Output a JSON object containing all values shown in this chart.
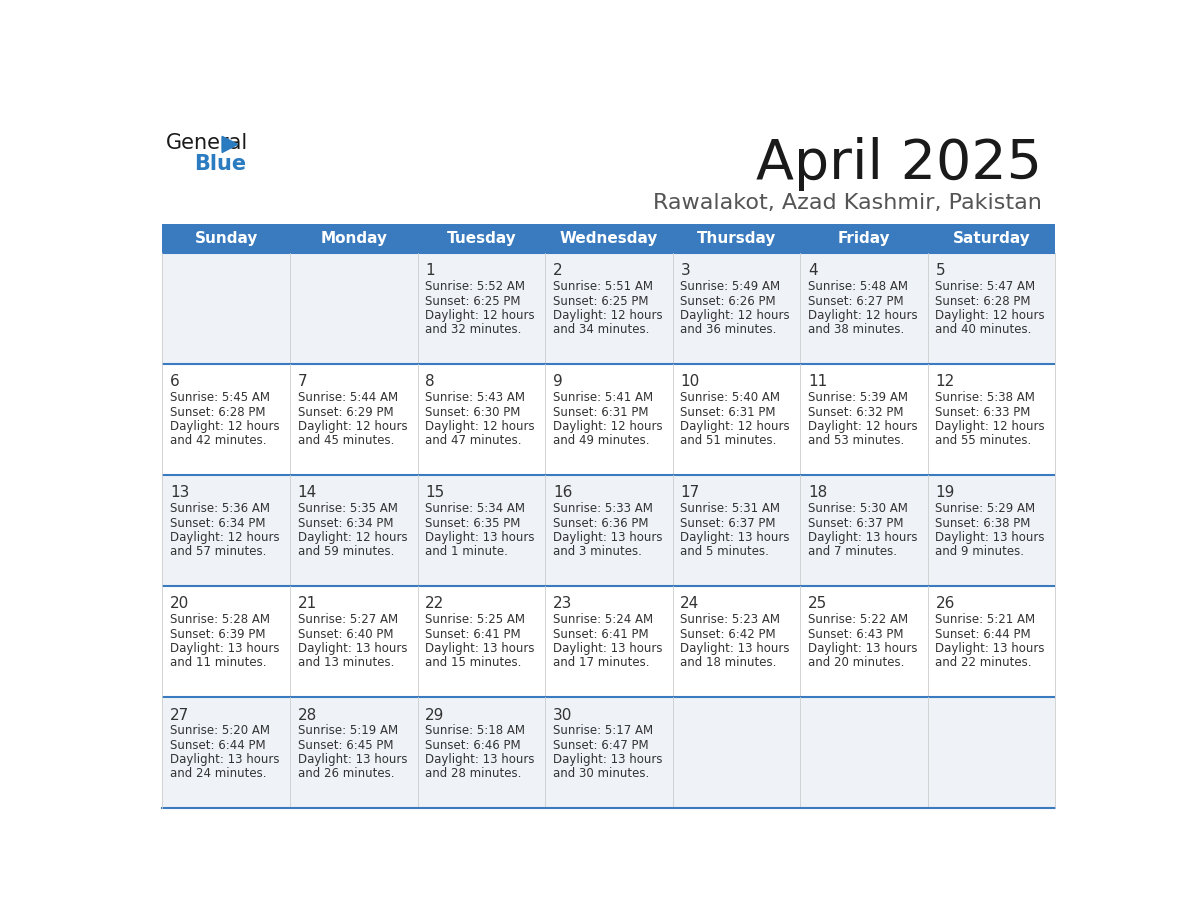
{
  "title": "April 2025",
  "subtitle": "Rawalakot, Azad Kashmir, Pakistan",
  "header_bg_color": "#3a7bbf",
  "header_text_color": "#ffffff",
  "row_bg_even": "#eff3f8",
  "row_bg_odd": "#ffffff",
  "day_headers": [
    "Sunday",
    "Monday",
    "Tuesday",
    "Wednesday",
    "Thursday",
    "Friday",
    "Saturday"
  ],
  "calendar_data": [
    [
      {
        "day": "",
        "sunrise": "",
        "sunset": "",
        "daylight": ""
      },
      {
        "day": "",
        "sunrise": "",
        "sunset": "",
        "daylight": ""
      },
      {
        "day": "1",
        "sunrise": "5:52 AM",
        "sunset": "6:25 PM",
        "daylight": "12 hours",
        "daylight2": "and 32 minutes."
      },
      {
        "day": "2",
        "sunrise": "5:51 AM",
        "sunset": "6:25 PM",
        "daylight": "12 hours",
        "daylight2": "and 34 minutes."
      },
      {
        "day": "3",
        "sunrise": "5:49 AM",
        "sunset": "6:26 PM",
        "daylight": "12 hours",
        "daylight2": "and 36 minutes."
      },
      {
        "day": "4",
        "sunrise": "5:48 AM",
        "sunset": "6:27 PM",
        "daylight": "12 hours",
        "daylight2": "and 38 minutes."
      },
      {
        "day": "5",
        "sunrise": "5:47 AM",
        "sunset": "6:28 PM",
        "daylight": "12 hours",
        "daylight2": "and 40 minutes."
      }
    ],
    [
      {
        "day": "6",
        "sunrise": "5:45 AM",
        "sunset": "6:28 PM",
        "daylight": "12 hours",
        "daylight2": "and 42 minutes."
      },
      {
        "day": "7",
        "sunrise": "5:44 AM",
        "sunset": "6:29 PM",
        "daylight": "12 hours",
        "daylight2": "and 45 minutes."
      },
      {
        "day": "8",
        "sunrise": "5:43 AM",
        "sunset": "6:30 PM",
        "daylight": "12 hours",
        "daylight2": "and 47 minutes."
      },
      {
        "day": "9",
        "sunrise": "5:41 AM",
        "sunset": "6:31 PM",
        "daylight": "12 hours",
        "daylight2": "and 49 minutes."
      },
      {
        "day": "10",
        "sunrise": "5:40 AM",
        "sunset": "6:31 PM",
        "daylight": "12 hours",
        "daylight2": "and 51 minutes."
      },
      {
        "day": "11",
        "sunrise": "5:39 AM",
        "sunset": "6:32 PM",
        "daylight": "12 hours",
        "daylight2": "and 53 minutes."
      },
      {
        "day": "12",
        "sunrise": "5:38 AM",
        "sunset": "6:33 PM",
        "daylight": "12 hours",
        "daylight2": "and 55 minutes."
      }
    ],
    [
      {
        "day": "13",
        "sunrise": "5:36 AM",
        "sunset": "6:34 PM",
        "daylight": "12 hours",
        "daylight2": "and 57 minutes."
      },
      {
        "day": "14",
        "sunrise": "5:35 AM",
        "sunset": "6:34 PM",
        "daylight": "12 hours",
        "daylight2": "and 59 minutes."
      },
      {
        "day": "15",
        "sunrise": "5:34 AM",
        "sunset": "6:35 PM",
        "daylight": "13 hours",
        "daylight2": "and 1 minute."
      },
      {
        "day": "16",
        "sunrise": "5:33 AM",
        "sunset": "6:36 PM",
        "daylight": "13 hours",
        "daylight2": "and 3 minutes."
      },
      {
        "day": "17",
        "sunrise": "5:31 AM",
        "sunset": "6:37 PM",
        "daylight": "13 hours",
        "daylight2": "and 5 minutes."
      },
      {
        "day": "18",
        "sunrise": "5:30 AM",
        "sunset": "6:37 PM",
        "daylight": "13 hours",
        "daylight2": "and 7 minutes."
      },
      {
        "day": "19",
        "sunrise": "5:29 AM",
        "sunset": "6:38 PM",
        "daylight": "13 hours",
        "daylight2": "and 9 minutes."
      }
    ],
    [
      {
        "day": "20",
        "sunrise": "5:28 AM",
        "sunset": "6:39 PM",
        "daylight": "13 hours",
        "daylight2": "and 11 minutes."
      },
      {
        "day": "21",
        "sunrise": "5:27 AM",
        "sunset": "6:40 PM",
        "daylight": "13 hours",
        "daylight2": "and 13 minutes."
      },
      {
        "day": "22",
        "sunrise": "5:25 AM",
        "sunset": "6:41 PM",
        "daylight": "13 hours",
        "daylight2": "and 15 minutes."
      },
      {
        "day": "23",
        "sunrise": "5:24 AM",
        "sunset": "6:41 PM",
        "daylight": "13 hours",
        "daylight2": "and 17 minutes."
      },
      {
        "day": "24",
        "sunrise": "5:23 AM",
        "sunset": "6:42 PM",
        "daylight": "13 hours",
        "daylight2": "and 18 minutes."
      },
      {
        "day": "25",
        "sunrise": "5:22 AM",
        "sunset": "6:43 PM",
        "daylight": "13 hours",
        "daylight2": "and 20 minutes."
      },
      {
        "day": "26",
        "sunrise": "5:21 AM",
        "sunset": "6:44 PM",
        "daylight": "13 hours",
        "daylight2": "and 22 minutes."
      }
    ],
    [
      {
        "day": "27",
        "sunrise": "5:20 AM",
        "sunset": "6:44 PM",
        "daylight": "13 hours",
        "daylight2": "and 24 minutes."
      },
      {
        "day": "28",
        "sunrise": "5:19 AM",
        "sunset": "6:45 PM",
        "daylight": "13 hours",
        "daylight2": "and 26 minutes."
      },
      {
        "day": "29",
        "sunrise": "5:18 AM",
        "sunset": "6:46 PM",
        "daylight": "13 hours",
        "daylight2": "and 28 minutes."
      },
      {
        "day": "30",
        "sunrise": "5:17 AM",
        "sunset": "6:47 PM",
        "daylight": "13 hours",
        "daylight2": "and 30 minutes."
      },
      {
        "day": "",
        "sunrise": "",
        "sunset": "",
        "daylight": "",
        "daylight2": ""
      },
      {
        "day": "",
        "sunrise": "",
        "sunset": "",
        "daylight": "",
        "daylight2": ""
      },
      {
        "day": "",
        "sunrise": "",
        "sunset": "",
        "daylight": "",
        "daylight2": ""
      }
    ]
  ],
  "logo_text1": "General",
  "logo_text2": "Blue",
  "logo_text1_color": "#1a1a1a",
  "logo_text2_color": "#2a7bbf",
  "logo_triangle_color": "#2a7bbf",
  "title_color": "#1a1a1a",
  "subtitle_color": "#555555",
  "cell_text_color": "#333333",
  "divider_color": "#3a7bbf",
  "col_divider_color": "#cccccc",
  "bg_color": "#ffffff"
}
